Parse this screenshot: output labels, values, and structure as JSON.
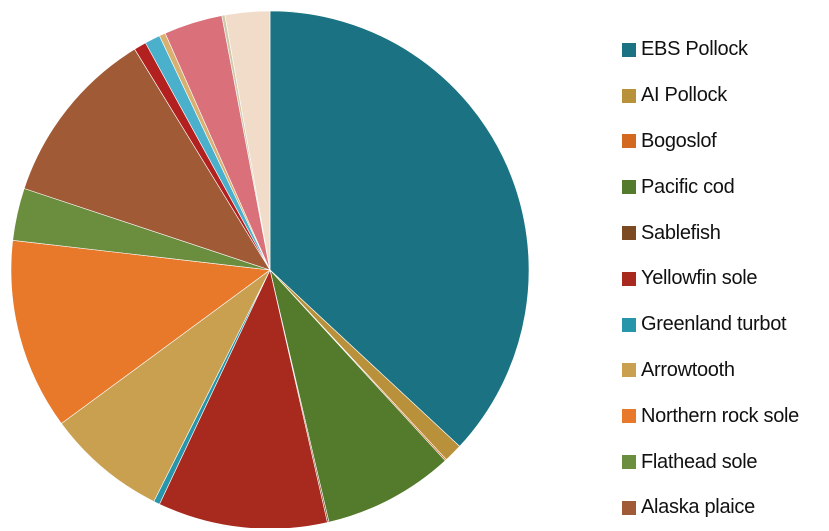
{
  "chart_data": {
    "type": "pie",
    "start_angle_deg": 0,
    "direction": "clockwise",
    "slices": [
      {
        "label": "EBS Pollock",
        "value": 38.4,
        "color": "#1b7282"
      },
      {
        "label": "AI Pollock",
        "value": 1.2,
        "color": "#b8913a"
      },
      {
        "label": "Bogoslof",
        "value": 0.1,
        "color": "#d2691e"
      },
      {
        "label": "Pacific cod",
        "value": 8.5,
        "color": "#547a2c"
      },
      {
        "label": "Sablefish",
        "value": 0.1,
        "color": "#7b4a22"
      },
      {
        "label": "Yellowfin sole",
        "value": 11.0,
        "color": "#a82a1e"
      },
      {
        "label": "Greenland turbot",
        "value": 0.4,
        "color": "#2796aa"
      },
      {
        "label": "Arrowtooth",
        "value": 7.8,
        "color": "#c8a050"
      },
      {
        "label": "Northern rock sole",
        "value": 12.4,
        "color": "#e8782a"
      },
      {
        "label": "Flathead sole",
        "value": 3.4,
        "color": "#6a8d3e"
      },
      {
        "label": "Alaska plaice",
        "value": 11.6,
        "color": "#a05a36"
      },
      {
        "label": "",
        "value": 0.8,
        "color": "#b32020"
      },
      {
        "label": "",
        "value": 1.0,
        "color": "#4ab0cc"
      },
      {
        "label": "",
        "value": 0.4,
        "color": "#d9b070"
      },
      {
        "label": "",
        "value": 3.8,
        "color": "#d9707a"
      },
      {
        "label": "",
        "value": 0.2,
        "color": "#cfc9a8"
      },
      {
        "label": "",
        "value": 2.9,
        "color": "#f0dcc8"
      }
    ],
    "legend": {
      "placement": "right",
      "entries": [
        {
          "label": "EBS Pollock",
          "color": "#1b7282"
        },
        {
          "label": "AI Pollock",
          "color": "#b8913a"
        },
        {
          "label": "Bogoslof",
          "color": "#d2691e"
        },
        {
          "label": "Pacific cod",
          "color": "#547a2c"
        },
        {
          "label": "Sablefish",
          "color": "#7b4a22"
        },
        {
          "label": "Yellowfin sole",
          "color": "#a82a1e"
        },
        {
          "label": "Greenland turbot",
          "color": "#2796aa"
        },
        {
          "label": "Arrowtooth",
          "color": "#c8a050"
        },
        {
          "label": "Northern rock sole",
          "color": "#e8782a"
        },
        {
          "label": "Flathead sole",
          "color": "#6a8d3e"
        },
        {
          "label": "Alaska plaice",
          "color": "#a05a36"
        }
      ]
    }
  }
}
